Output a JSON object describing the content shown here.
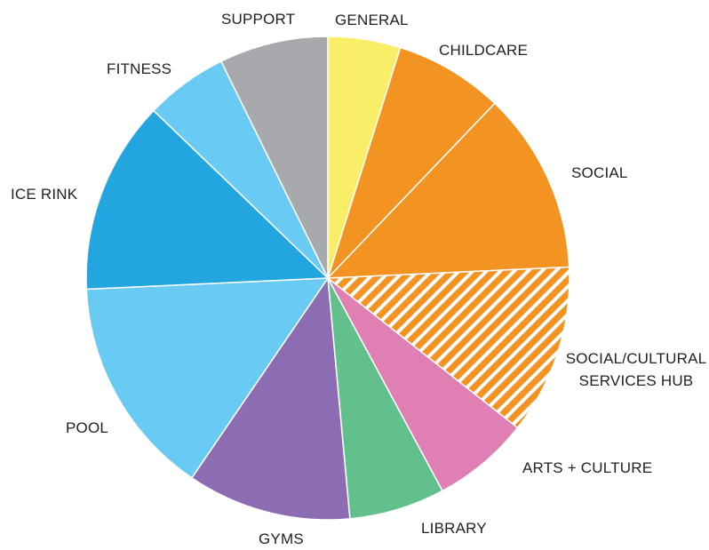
{
  "chart_data": {
    "type": "pie",
    "title": "",
    "start": "12 o'clock",
    "direction": "clockwise",
    "slices": [
      {
        "label": "GENERAL",
        "value": 5.0,
        "color": "#faed67"
      },
      {
        "label": "CHILDCARE",
        "value": 7.5,
        "color": "#f39322"
      },
      {
        "label": "SOCIAL",
        "value": 12.5,
        "color": "#f39322"
      },
      {
        "label": "SOCIAL/CULTURAL SERVICES HUB",
        "value": 11.7,
        "color": "#f39322",
        "pattern": "hatched"
      },
      {
        "label": "ARTS + CULTURE",
        "value": 6.7,
        "color": "#e07fb4"
      },
      {
        "label": "LIBRARY",
        "value": 6.6,
        "color": "#61c08b"
      },
      {
        "label": "GYMS",
        "value": 11.3,
        "color": "#8c6db3"
      },
      {
        "label": "POOL",
        "value": 15.2,
        "color": "#69cbf3"
      },
      {
        "label": "ICE RINK",
        "value": 13.3,
        "color": "#23a6e0"
      },
      {
        "label": "FITNESS",
        "value": 5.7,
        "color": "#69cbf3"
      },
      {
        "label": "SUPPORT",
        "value": 7.5,
        "color": "#a7a9ac"
      }
    ]
  }
}
